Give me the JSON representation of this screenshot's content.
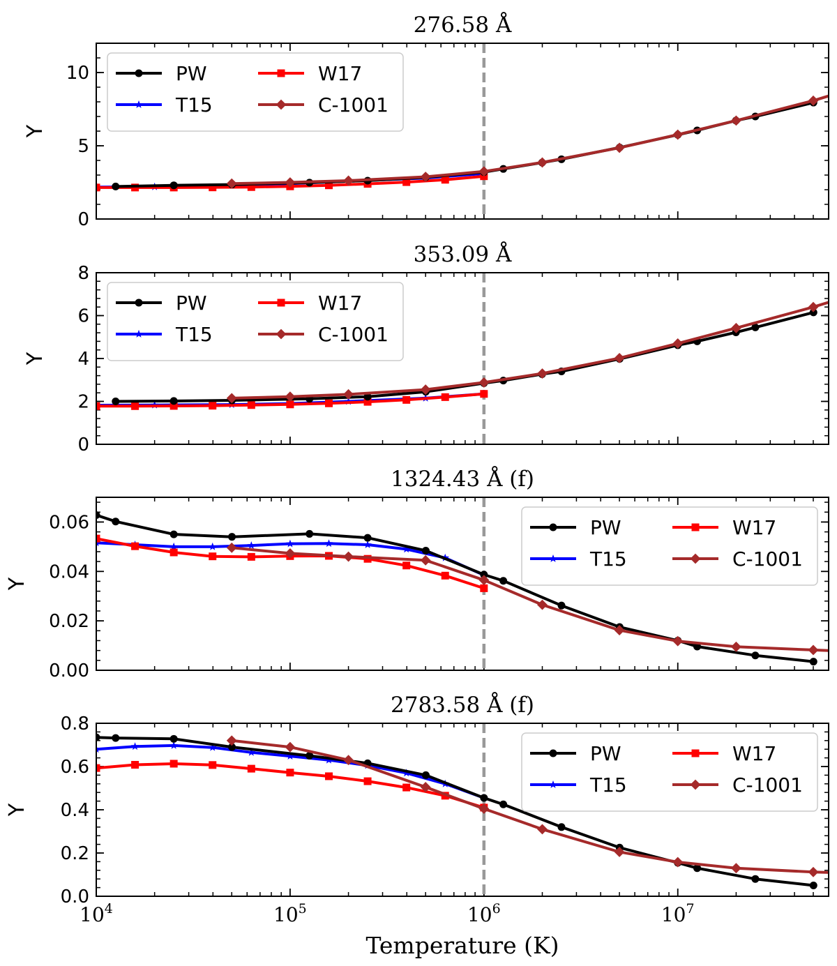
{
  "figure": {
    "xlabel": "Temperature (K)",
    "ylabel": "Y"
  },
  "chart_data": [
    {
      "type": "line",
      "title": "276.58 Å",
      "ylabel": "Y",
      "xlabel": "Temperature (K)",
      "xscale": "log",
      "xlim": [
        10000,
        60000000
      ],
      "ylim": [
        0,
        12
      ],
      "yticks": [
        0,
        5,
        10
      ],
      "yticklabels": [
        "0",
        "5",
        "10"
      ],
      "xticks": [
        10000,
        100000,
        1000000,
        10000000
      ],
      "xticklabels": [],
      "vline": 1000000,
      "legend_loc": "upper left",
      "series": [
        {
          "name": "PW",
          "color": "#000000",
          "marker": "circle",
          "x": [
            12589,
            25119,
            50119,
            125893,
            251189,
            501187,
            1000000,
            1258925,
            1995262,
            2511886,
            5011872,
            10000000,
            12589254,
            19952623,
            25118864,
            50118723
          ],
          "y": [
            2.22,
            2.3,
            2.35,
            2.48,
            2.62,
            2.85,
            3.2,
            3.42,
            3.85,
            4.08,
            4.88,
            5.75,
            6.05,
            6.72,
            7.0,
            7.95
          ]
        },
        {
          "name": "T15",
          "color": "#0000ff",
          "marker": "star",
          "x": [
            10000,
            20000,
            50000,
            100000,
            200000,
            500000,
            1000000
          ],
          "y": [
            2.18,
            2.2,
            2.3,
            2.42,
            2.58,
            2.8,
            3.1
          ]
        },
        {
          "name": "W17",
          "color": "#ff0000",
          "marker": "square",
          "x": [
            10000,
            15849,
            25119,
            39811,
            63096,
            100000,
            158489,
            251189,
            398107,
            630957,
            1000000
          ],
          "y": [
            2.15,
            2.15,
            2.15,
            2.16,
            2.18,
            2.23,
            2.3,
            2.4,
            2.52,
            2.68,
            2.92
          ]
        },
        {
          "name": "C-1001",
          "color": "#a52a2a",
          "marker": "diamond",
          "x": [
            50000,
            100000,
            200000,
            500000,
            1000000,
            2000000,
            5000000,
            10000000,
            20000000,
            50000000,
            60000000
          ],
          "y": [
            2.42,
            2.5,
            2.62,
            2.88,
            3.25,
            3.86,
            4.86,
            5.76,
            6.72,
            8.08,
            8.4
          ]
        }
      ]
    },
    {
      "type": "line",
      "title": "353.09 Å",
      "ylabel": "Y",
      "xlabel": "Temperature (K)",
      "xscale": "log",
      "xlim": [
        10000,
        60000000
      ],
      "ylim": [
        0,
        8
      ],
      "yticks": [
        0,
        2,
        4,
        6,
        8
      ],
      "yticklabels": [
        "0",
        "2",
        "4",
        "6",
        "8"
      ],
      "xticks": [
        10000,
        100000,
        1000000,
        10000000
      ],
      "xticklabels": [],
      "vline": 1000000,
      "legend_loc": "upper left",
      "series": [
        {
          "name": "PW",
          "color": "#000000",
          "marker": "circle",
          "x": [
            12589,
            25119,
            50119,
            125893,
            251189,
            501187,
            1000000,
            1258925,
            1995262,
            2511886,
            5011872,
            10000000,
            12589254,
            19952623,
            25118864,
            50118723
          ],
          "y": [
            2.0,
            2.02,
            2.05,
            2.12,
            2.22,
            2.45,
            2.85,
            2.97,
            3.27,
            3.4,
            3.98,
            4.62,
            4.8,
            5.22,
            5.45,
            6.15
          ]
        },
        {
          "name": "T15",
          "color": "#0000ff",
          "marker": "star",
          "x": [
            10000,
            20000,
            50000,
            100000,
            200000,
            500000,
            1000000
          ],
          "y": [
            1.82,
            1.83,
            1.85,
            1.9,
            2.0,
            2.15,
            2.35
          ]
        },
        {
          "name": "W17",
          "color": "#ff0000",
          "marker": "square",
          "x": [
            10000,
            15849,
            25119,
            39811,
            63096,
            100000,
            158489,
            251189,
            398107,
            630957,
            1000000
          ],
          "y": [
            1.78,
            1.78,
            1.79,
            1.8,
            1.83,
            1.86,
            1.91,
            1.98,
            2.07,
            2.2,
            2.35
          ]
        },
        {
          "name": "C-1001",
          "color": "#a52a2a",
          "marker": "diamond",
          "x": [
            50000,
            100000,
            200000,
            500000,
            1000000,
            2000000,
            5000000,
            10000000,
            20000000,
            50000000,
            60000000
          ],
          "y": [
            2.15,
            2.22,
            2.33,
            2.55,
            2.88,
            3.3,
            4.02,
            4.7,
            5.42,
            6.4,
            6.62
          ]
        }
      ]
    },
    {
      "type": "line",
      "title": "1324.43 Å (f)",
      "ylabel": "Y",
      "xlabel": "Temperature (K)",
      "xscale": "log",
      "xlim": [
        10000,
        60000000
      ],
      "ylim": [
        0,
        0.07
      ],
      "yticks": [
        0,
        0.02,
        0.04,
        0.06
      ],
      "yticklabels": [
        "0.00",
        "0.02",
        "0.04",
        "0.06"
      ],
      "xticks": [
        10000,
        100000,
        1000000,
        10000000
      ],
      "xticklabels": [],
      "vline": 1000000,
      "legend_loc": "upper right",
      "series": [
        {
          "name": "PW",
          "color": "#000000",
          "marker": "circle",
          "x": [
            10000,
            12589,
            25119,
            50119,
            125893,
            251189,
            501187,
            1000000,
            1258925,
            2511886,
            5011872,
            10000000,
            12589254,
            25118864,
            50118723
          ],
          "y": [
            0.0628,
            0.0602,
            0.055,
            0.054,
            0.0552,
            0.0536,
            0.0484,
            0.0387,
            0.0362,
            0.0262,
            0.0175,
            0.012,
            0.0096,
            0.006,
            0.0035
          ]
        },
        {
          "name": "T15",
          "color": "#0000ff",
          "marker": "star",
          "x": [
            10000,
            15849,
            25119,
            39811,
            63096,
            100000,
            158489,
            251189,
            398107,
            630957,
            1000000
          ],
          "y": [
            0.0516,
            0.0508,
            0.05,
            0.05,
            0.0505,
            0.0512,
            0.0513,
            0.0508,
            0.049,
            0.0455,
            0.0385
          ]
        },
        {
          "name": "W17",
          "color": "#ff0000",
          "marker": "square",
          "x": [
            10000,
            15849,
            25119,
            39811,
            63096,
            100000,
            158489,
            251189,
            398107,
            630957,
            1000000
          ],
          "y": [
            0.0533,
            0.0502,
            0.0477,
            0.0461,
            0.0459,
            0.0462,
            0.0463,
            0.0451,
            0.0424,
            0.0383,
            0.0332
          ]
        },
        {
          "name": "C-1001",
          "color": "#a52a2a",
          "marker": "diamond",
          "x": [
            50000,
            100000,
            200000,
            500000,
            1000000,
            2000000,
            5000000,
            10000000,
            20000000,
            50000000,
            60000000
          ],
          "y": [
            0.0496,
            0.0473,
            0.046,
            0.0445,
            0.0365,
            0.0265,
            0.0162,
            0.0118,
            0.0095,
            0.0082,
            0.008
          ]
        }
      ]
    },
    {
      "type": "line",
      "title": "2783.58 Å (f)",
      "ylabel": "Y",
      "xlabel": "Temperature (K)",
      "xscale": "log",
      "xlim": [
        10000,
        60000000
      ],
      "ylim": [
        0,
        0.8
      ],
      "yticks": [
        0,
        0.2,
        0.4,
        0.6,
        0.8
      ],
      "yticklabels": [
        "0.0",
        "0.2",
        "0.4",
        "0.6",
        "0.8"
      ],
      "xticks": [
        10000,
        100000,
        1000000,
        10000000
      ],
      "xticklabels": [
        "10^4",
        "10^5",
        "10^6",
        "10^7"
      ],
      "vline": 1000000,
      "legend_loc": "upper right",
      "series": [
        {
          "name": "PW",
          "color": "#000000",
          "marker": "circle",
          "x": [
            10000,
            12589,
            25119,
            50119,
            125893,
            251189,
            501187,
            1000000,
            1258925,
            2511886,
            5011872,
            10000000,
            12589254,
            25118864,
            50118723
          ],
          "y": [
            0.735,
            0.732,
            0.728,
            0.69,
            0.65,
            0.615,
            0.56,
            0.455,
            0.425,
            0.32,
            0.225,
            0.155,
            0.13,
            0.08,
            0.05
          ]
        },
        {
          "name": "T15",
          "color": "#0000ff",
          "marker": "star",
          "x": [
            10000,
            15849,
            25119,
            39811,
            63096,
            100000,
            158489,
            251189,
            398107,
            630957,
            1000000
          ],
          "y": [
            0.68,
            0.693,
            0.697,
            0.688,
            0.665,
            0.648,
            0.63,
            0.605,
            0.57,
            0.52,
            0.455
          ]
        },
        {
          "name": "W17",
          "color": "#ff0000",
          "marker": "square",
          "x": [
            10000,
            15849,
            25119,
            39811,
            63096,
            100000,
            158489,
            251189,
            398107,
            630957,
            1000000
          ],
          "y": [
            0.593,
            0.608,
            0.613,
            0.607,
            0.59,
            0.572,
            0.555,
            0.532,
            0.503,
            0.465,
            0.41
          ]
        },
        {
          "name": "C-1001",
          "color": "#a52a2a",
          "marker": "diamond",
          "x": [
            50000,
            100000,
            200000,
            500000,
            1000000,
            2000000,
            5000000,
            10000000,
            20000000,
            50000000,
            60000000
          ],
          "y": [
            0.72,
            0.69,
            0.63,
            0.505,
            0.405,
            0.31,
            0.205,
            0.158,
            0.13,
            0.112,
            0.11
          ]
        }
      ]
    }
  ]
}
